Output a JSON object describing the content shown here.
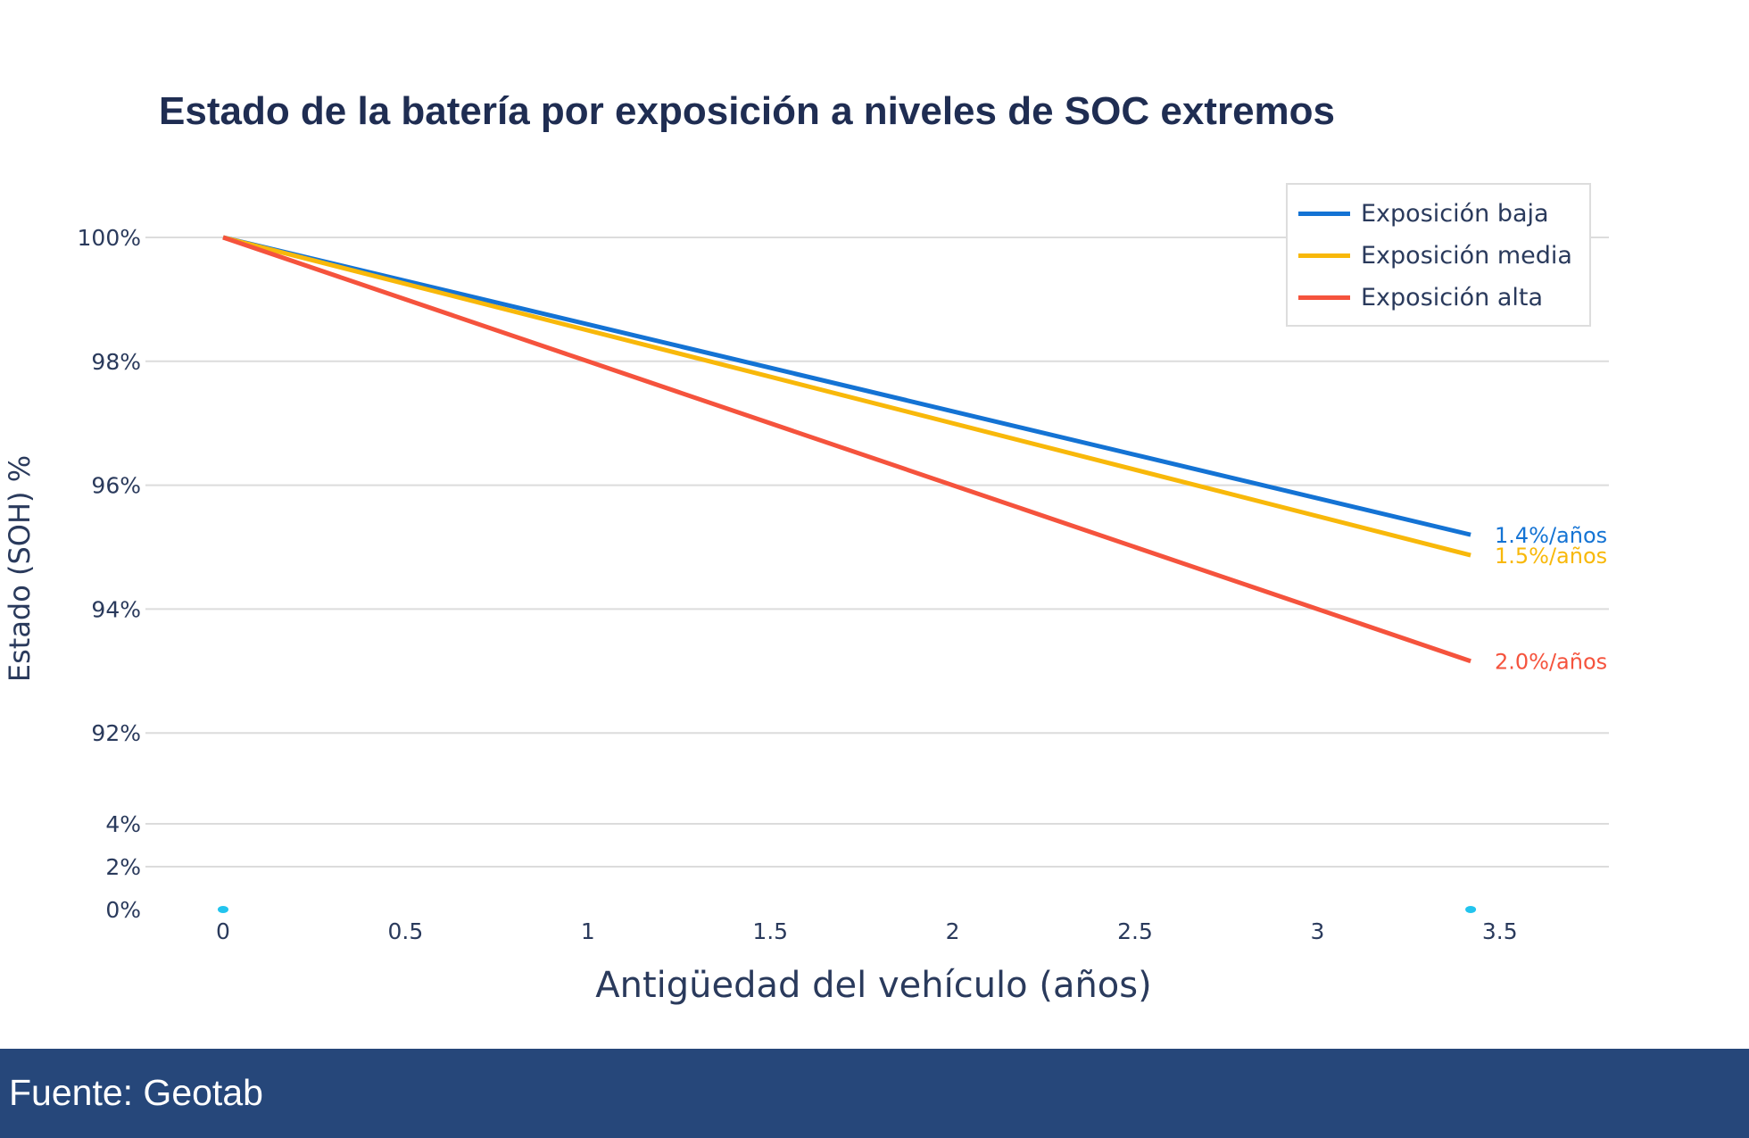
{
  "chart_data": {
    "type": "line",
    "title": "Estado de la batería por exposición a niveles de SOC extremos",
    "xlabel": "Antigüedad del vehículo (años)",
    "ylabel": "Estado (SOH) %",
    "xlim": [
      0,
      3.5
    ],
    "x_ticks": [
      "0",
      "0.5",
      "1",
      "1.5",
      "2",
      "2.5",
      "3",
      "3.5"
    ],
    "y_ticks": [
      "100%",
      "98%",
      "96%",
      "94%",
      "92%",
      "4%",
      "2%",
      "0%"
    ],
    "y_axis_broken": true,
    "grid": true,
    "legend_position": "top-right",
    "series": [
      {
        "name": "Exposición baja",
        "color": "#1473d4",
        "x": [
          0,
          3.42
        ],
        "y": [
          100,
          95.2
        ],
        "end_label": "1.4%/años"
      },
      {
        "name": "Exposición media",
        "color": "#f8b80a",
        "x": [
          0,
          3.42
        ],
        "y": [
          100,
          94.87
        ],
        "end_label": "1.5%/años"
      },
      {
        "name": "Exposición alta",
        "color": "#f5533d",
        "x": [
          0,
          1,
          2,
          3,
          3.42
        ],
        "y": [
          100,
          98.0,
          96.0,
          94.0,
          93.16
        ],
        "end_label": "2.0%/años"
      }
    ],
    "markers": {
      "color": "#22c4ee",
      "x": [
        0,
        3.42
      ],
      "y": [
        0,
        0
      ]
    }
  },
  "footer": {
    "source": "Fuente: Geotab"
  }
}
